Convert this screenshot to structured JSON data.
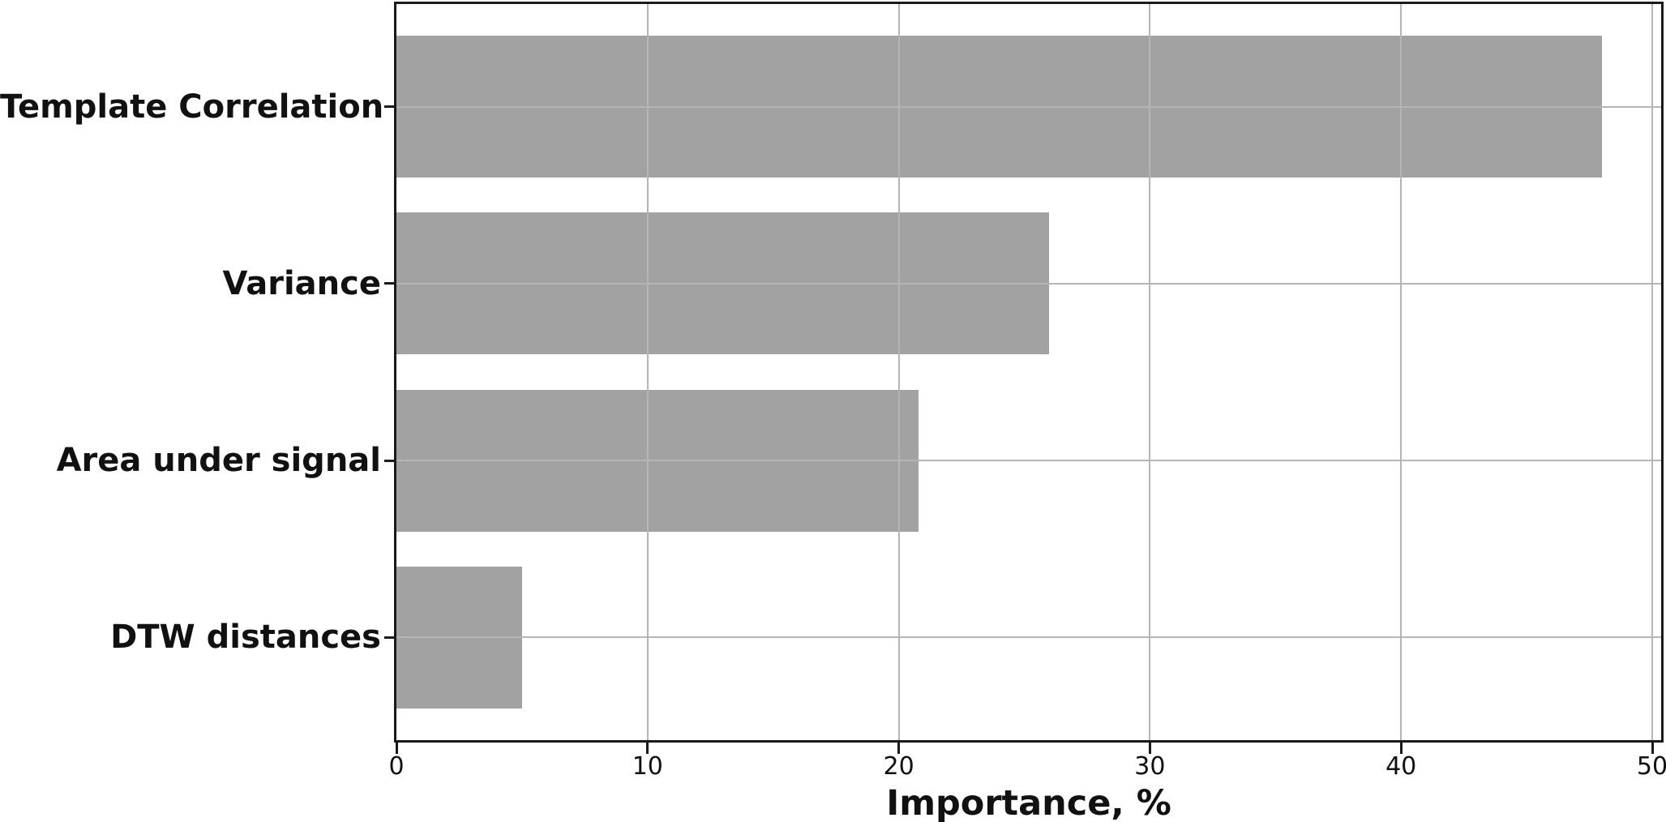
{
  "chart_data": {
    "type": "bar",
    "orientation": "horizontal",
    "title": "",
    "xlabel": "Importance, %",
    "ylabel": "",
    "categories": [
      "Template Correlation",
      "Variance",
      "Area under signal",
      "DTW distances"
    ],
    "values": [
      48.0,
      26.0,
      20.8,
      5.0
    ],
    "xticks": [
      0,
      10,
      20,
      30,
      40,
      50
    ],
    "xlim": [
      0,
      50.4
    ],
    "grid": true,
    "legend": "none",
    "bar_color": "#a2a2a2",
    "grid_color": "#b5b5b5",
    "axis_color": "#1a1a1a",
    "text_color": "#111111",
    "background_color": "#ffffff"
  }
}
